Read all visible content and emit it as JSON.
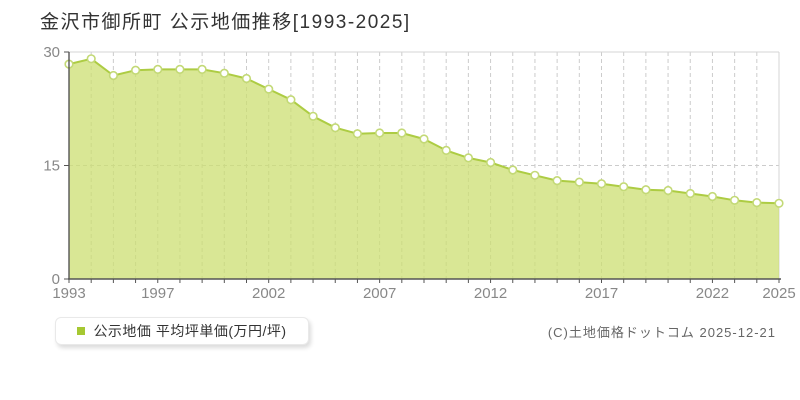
{
  "header": {
    "title": "金沢市御所町 公示地価推移[1993-2025]"
  },
  "legend": {
    "label": "公示地価 平均坪単価(万円/坪)",
    "marker_color": "#a6c832"
  },
  "footer": {
    "copyright": "(C)土地価格ドットコム 2025-12-21"
  },
  "chart_data": {
    "type": "area",
    "title": "金沢市御所町 公示地価推移[1993-2025]",
    "series_name": "公示地価 平均坪単価(万円/坪)",
    "unit": "万円/坪",
    "x": [
      1993,
      1994,
      1995,
      1996,
      1997,
      1998,
      1999,
      2000,
      2001,
      2002,
      2003,
      2004,
      2005,
      2006,
      2007,
      2008,
      2009,
      2010,
      2011,
      2012,
      2013,
      2014,
      2015,
      2016,
      2017,
      2018,
      2019,
      2020,
      2021,
      2022,
      2023,
      2024,
      2025
    ],
    "values": [
      28.4,
      29.1,
      26.9,
      27.6,
      27.7,
      27.7,
      27.7,
      27.2,
      26.5,
      25.1,
      23.7,
      21.5,
      20.0,
      19.2,
      19.3,
      19.3,
      18.5,
      17.0,
      16.0,
      15.4,
      14.4,
      13.7,
      13.0,
      12.8,
      12.6,
      12.2,
      11.8,
      11.7,
      11.3,
      10.9,
      10.4,
      10.1,
      10.0
    ],
    "ylim": [
      0,
      30
    ],
    "y_ticks": [
      0,
      15,
      30
    ],
    "x_tick_labeled_years": [
      1993,
      1997,
      2002,
      2007,
      2012,
      2017,
      2022,
      2025
    ],
    "grid": "vertical dashed line per year, horizontal dashed line at 15, solid light top and right borders",
    "legend_position": "bottom-left",
    "colors": {
      "area_fill": "#d9e799",
      "line": "#adcc43",
      "marker_fill": "#ffffff",
      "marker_stroke": "#c3d976",
      "grid": "#cccccc",
      "plot_border": "#d4d4d4",
      "axis": "#555555",
      "tick_label": "#888888"
    }
  }
}
